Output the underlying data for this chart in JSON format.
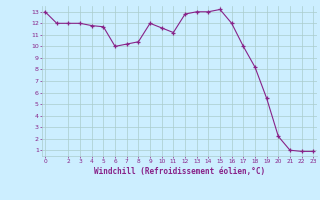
{
  "xlabel": "Windchill (Refroidissement éolien,°C)",
  "x_values": [
    0,
    1,
    2,
    3,
    4,
    5,
    6,
    7,
    8,
    9,
    10,
    11,
    12,
    13,
    14,
    15,
    16,
    17,
    18,
    19,
    20,
    21,
    22,
    23
  ],
  "y_values": [
    13,
    12,
    12,
    12,
    11.8,
    11.7,
    10,
    10.2,
    10.4,
    12,
    11.6,
    11.2,
    12.8,
    13,
    13,
    13.2,
    12,
    10,
    8.2,
    5.5,
    2.2,
    1,
    0.9,
    0.9
  ],
  "line_color": "#882288",
  "marker_color": "#882288",
  "bg_color": "#cceeff",
  "grid_color": "#aacccc",
  "tick_color": "#882288",
  "ylim": [
    0.5,
    13.5
  ],
  "xlim": [
    -0.3,
    23.3
  ],
  "yticks": [
    1,
    2,
    3,
    4,
    5,
    6,
    7,
    8,
    9,
    10,
    11,
    12,
    13
  ],
  "xticks": [
    0,
    2,
    3,
    4,
    5,
    6,
    7,
    8,
    9,
    10,
    11,
    12,
    13,
    14,
    15,
    16,
    17,
    18,
    19,
    20,
    21,
    22,
    23
  ]
}
